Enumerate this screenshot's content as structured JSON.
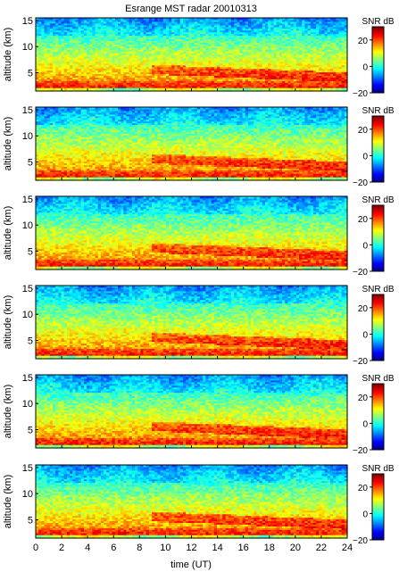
{
  "figure": {
    "title": "Esrange MST radar 20010313",
    "xlabel": "time (UT)"
  },
  "chart_data": {
    "type": "heatmap",
    "title": "Esrange MST radar 20010313",
    "xlabel": "time (UT)",
    "xlim": [
      0,
      24
    ],
    "x_ticks": [
      "0",
      "2",
      "4",
      "6",
      "8",
      "10",
      "12",
      "14",
      "16",
      "18",
      "20",
      "22",
      "24"
    ],
    "colorscale": [
      "#000080",
      "#0000ff",
      "#0080ff",
      "#00ffff",
      "#80ff80",
      "#ffff00",
      "#ff8000",
      "#ff0000",
      "#800000"
    ],
    "panels": [
      {
        "ylabel": "altitude (km)",
        "ylim": [
          1.5,
          15.5
        ],
        "y_ticks": [
          "5",
          "10",
          "15"
        ],
        "colorbar": {
          "label": "SNR dB",
          "range": [
            -20,
            30
          ],
          "ticks": [
            "20",
            "0",
            "−20"
          ]
        }
      },
      {
        "ylabel": "altitude (km)",
        "ylim": [
          1.5,
          15.5
        ],
        "y_ticks": [
          "5",
          "10",
          "15"
        ],
        "colorbar": {
          "label": "SNR dB",
          "range": [
            -20,
            30
          ],
          "ticks": [
            "20",
            "0",
            "−20"
          ]
        }
      },
      {
        "ylabel": "altitude (km)",
        "ylim": [
          1.5,
          15.5
        ],
        "y_ticks": [
          "5",
          "10",
          "15"
        ],
        "colorbar": {
          "label": "SNR dB",
          "range": [
            -20,
            30
          ],
          "ticks": [
            "20",
            "0",
            "−20"
          ]
        }
      },
      {
        "ylabel": "altitude (km)",
        "ylim": [
          1.5,
          15.5
        ],
        "y_ticks": [
          "5",
          "10",
          "15"
        ],
        "colorbar": {
          "label": "SNR dB",
          "range": [
            -20,
            30
          ],
          "ticks": [
            "20",
            "0",
            "−20"
          ]
        }
      },
      {
        "ylabel": "altitude (km)",
        "ylim": [
          1.5,
          15.5
        ],
        "y_ticks": [
          "5",
          "10",
          "15"
        ],
        "colorbar": {
          "label": "SNR dB",
          "range": [
            -20,
            30
          ],
          "ticks": [
            "20",
            "0",
            "−20"
          ]
        }
      },
      {
        "ylabel": "altitude (km)",
        "ylim": [
          1.5,
          15.5
        ],
        "y_ticks": [
          "5",
          "10",
          "15"
        ],
        "colorbar": {
          "label": "SNR dB",
          "range": [
            -20,
            30
          ],
          "ticks": [
            "20",
            "0",
            "−20"
          ]
        }
      }
    ]
  }
}
